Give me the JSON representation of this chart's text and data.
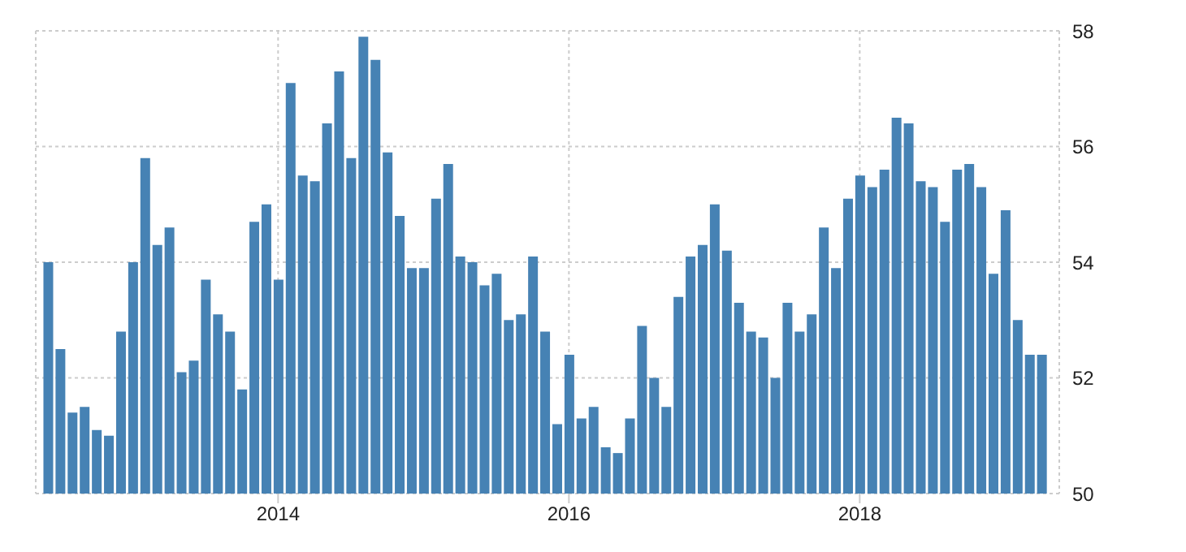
{
  "chart_data": {
    "type": "bar",
    "x": [
      "2012-06",
      "2012-07",
      "2012-08",
      "2012-09",
      "2012-10",
      "2012-11",
      "2012-12",
      "2013-01",
      "2013-02",
      "2013-03",
      "2013-04",
      "2013-05",
      "2013-06",
      "2013-07",
      "2013-08",
      "2013-09",
      "2013-10",
      "2013-11",
      "2013-12",
      "2014-01",
      "2014-02",
      "2014-03",
      "2014-04",
      "2014-05",
      "2014-06",
      "2014-07",
      "2014-08",
      "2014-09",
      "2014-10",
      "2014-11",
      "2014-12",
      "2015-01",
      "2015-02",
      "2015-03",
      "2015-04",
      "2015-05",
      "2015-06",
      "2015-07",
      "2015-08",
      "2015-09",
      "2015-10",
      "2015-11",
      "2015-12",
      "2016-01",
      "2016-02",
      "2016-03",
      "2016-04",
      "2016-05",
      "2016-06",
      "2016-07",
      "2016-08",
      "2016-09",
      "2016-10",
      "2016-11",
      "2016-12",
      "2017-01",
      "2017-02",
      "2017-03",
      "2017-04",
      "2017-05",
      "2017-06",
      "2017-07",
      "2017-08",
      "2017-09",
      "2017-10",
      "2017-11",
      "2017-12",
      "2018-01",
      "2018-02",
      "2018-03",
      "2018-04",
      "2018-05",
      "2018-06",
      "2018-07",
      "2018-08",
      "2018-09",
      "2018-10",
      "2018-11",
      "2018-12",
      "2019-01",
      "2019-02",
      "2019-03",
      "2019-04"
    ],
    "values": [
      54.0,
      52.5,
      51.4,
      51.5,
      51.1,
      51.0,
      52.8,
      54.0,
      55.8,
      54.3,
      54.6,
      52.1,
      52.3,
      53.7,
      53.1,
      52.8,
      51.8,
      54.7,
      55.0,
      53.7,
      57.1,
      55.5,
      55.4,
      56.4,
      57.3,
      55.8,
      57.9,
      57.5,
      55.9,
      54.8,
      53.9,
      53.9,
      55.1,
      55.7,
      54.1,
      54.0,
      53.6,
      53.8,
      53.0,
      53.1,
      54.1,
      52.8,
      51.2,
      52.4,
      51.3,
      51.5,
      50.8,
      50.7,
      51.3,
      52.9,
      52.0,
      51.5,
      53.4,
      54.1,
      54.3,
      55.0,
      54.2,
      53.3,
      52.8,
      52.7,
      52.0,
      53.3,
      52.8,
      53.1,
      54.6,
      53.9,
      55.1,
      55.5,
      55.3,
      55.6,
      56.5,
      56.4,
      55.4,
      55.3,
      54.7,
      55.6,
      55.7,
      55.3,
      53.8,
      54.9,
      53.0,
      52.4,
      52.4
    ],
    "color": "#4682b4",
    "xlim": [
      "2012-05-01",
      "2019-05-15"
    ],
    "xticks": [
      {
        "value": "2014-01",
        "label": "2014"
      },
      {
        "value": "2016-01",
        "label": "2016"
      },
      {
        "value": "2018-01",
        "label": "2018"
      }
    ],
    "ylim": [
      50,
      58
    ],
    "yticks": [
      50,
      52,
      54,
      56,
      58
    ],
    "grid": true
  }
}
